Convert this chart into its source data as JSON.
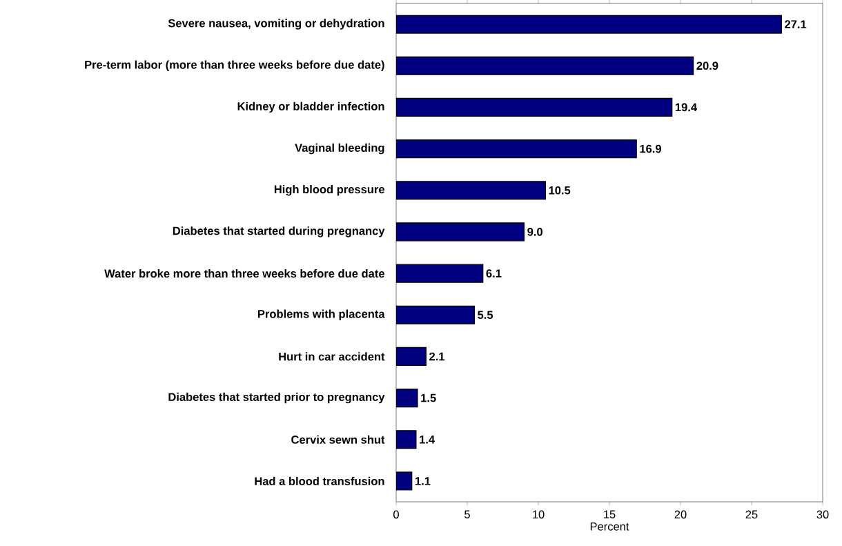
{
  "chart_data": {
    "type": "bar",
    "orientation": "horizontal",
    "xlabel": "Percent",
    "categories": [
      "Severe nausea, vomiting or dehydration",
      "Pre-term labor (more than three weeks before due date)",
      "Kidney or bladder infection",
      "Vaginal bleeding",
      "High blood pressure",
      "Diabetes that started during pregnancy",
      "Water broke more than three weeks before due date",
      "Problems with placenta",
      "Hurt in car accident",
      "Diabetes that started prior to pregnancy",
      "Cervix sewn shut",
      "Had a blood transfusion"
    ],
    "values": [
      27.1,
      20.9,
      19.4,
      16.9,
      10.5,
      9.0,
      6.1,
      5.5,
      2.1,
      1.5,
      1.4,
      1.1
    ],
    "value_labels": [
      "27.1",
      "20.9",
      "19.4",
      "16.9",
      "10.5",
      "9.0",
      "6.1",
      "5.5",
      "2.1",
      "1.5",
      "1.4",
      "1.1"
    ],
    "color": "#000080",
    "xlim": [
      0,
      30
    ],
    "xticks": [
      0,
      5,
      10,
      15,
      20,
      25,
      30
    ],
    "grid": false
  }
}
